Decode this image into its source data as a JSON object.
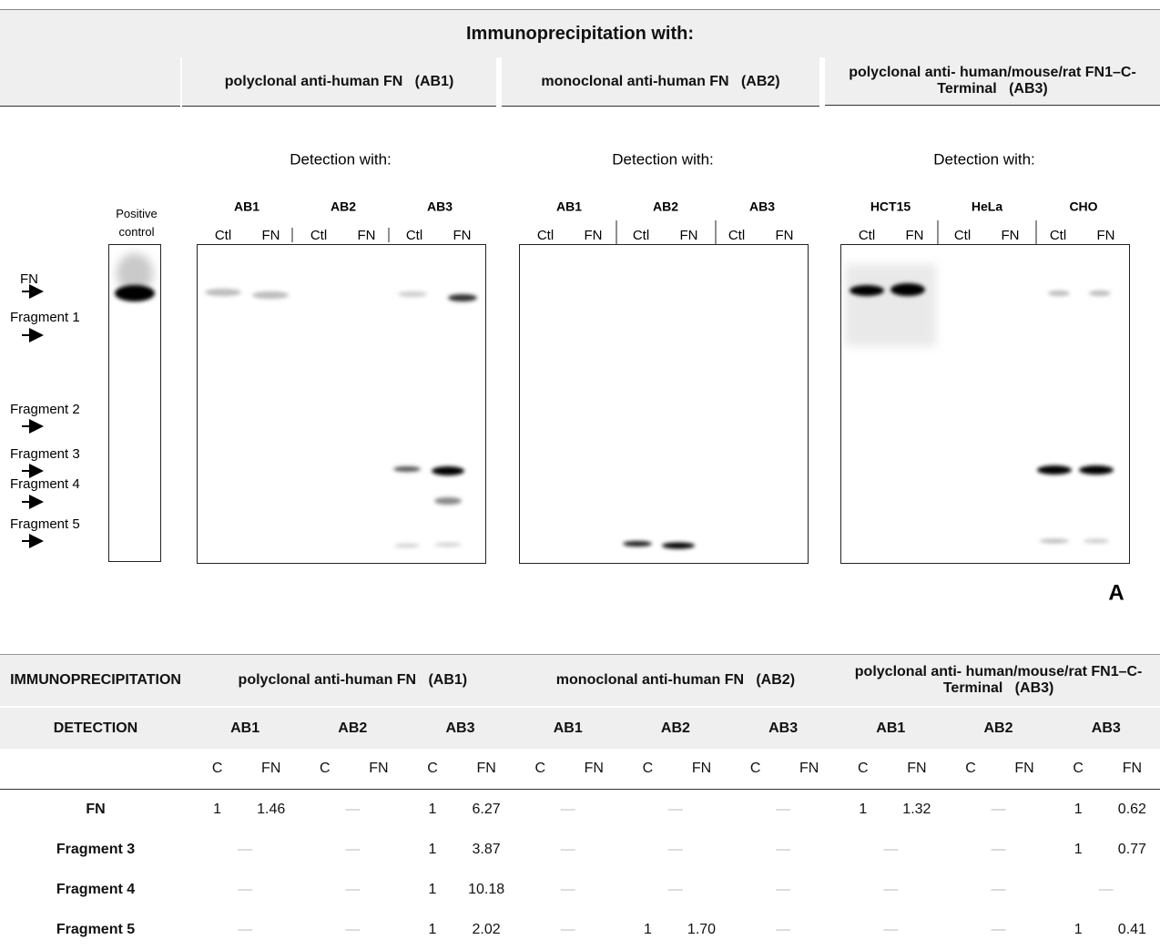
{
  "header": {
    "title": "Immunoprecipitation with:",
    "columns": [
      "polyclonal anti-human FN   (AB1)",
      "monoclonal anti-human FN   (AB2)",
      "polyclonal anti- human/mouse/rat FN1–C-Terminal   (AB3)"
    ]
  },
  "blots": {
    "positive_control": "Positive control",
    "markers": [
      "FN",
      "Fragment 1",
      "Fragment 2",
      "Fragment 3",
      "Fragment 4",
      "Fragment 5"
    ],
    "panels": [
      {
        "detection": "Detection with:",
        "groups": [
          "AB1",
          "AB2",
          "AB3"
        ],
        "lanes": [
          "Ctl",
          "FN",
          "Ctl",
          "FN",
          "Ctl",
          "FN"
        ]
      },
      {
        "detection": "Detection with:",
        "groups": [
          "AB1",
          "AB2",
          "AB3"
        ],
        "lanes": [
          "Ctl",
          "FN",
          "Ctl",
          "FN",
          "Ctl",
          "FN"
        ]
      },
      {
        "detection": "Detection with:",
        "groups": [
          "HCT15",
          "HeLa",
          "CHO"
        ],
        "lanes": [
          "Ctl",
          "FN",
          "Ctl",
          "FN",
          "Ctl",
          "FN"
        ]
      }
    ],
    "panel_label": "A"
  },
  "table": {
    "row_header": "IMMUNOPRECIPITATION",
    "groups": [
      "polyclonal anti-human FN   (AB1)",
      "monoclonal anti-human FN   (AB2)",
      "polyclonal anti- human/mouse/rat FN1–C-Terminal   (AB3)"
    ],
    "detection_header": "DETECTION",
    "detections": [
      "AB1",
      "AB2",
      "AB3",
      "AB1",
      "AB2",
      "AB3",
      "AB1",
      "AB2",
      "AB3"
    ],
    "lanes": [
      "C",
      "FN"
    ],
    "rows": [
      {
        "label": "FN",
        "cells": [
          [
            "1",
            "1.46"
          ],
          "—",
          [
            "1",
            "6.27"
          ],
          "—",
          "—",
          "—",
          [
            "1",
            "1.32"
          ],
          "—",
          [
            "1",
            "0.62"
          ]
        ]
      },
      {
        "label": "Fragment 3",
        "cells": [
          "—",
          "—",
          [
            "1",
            "3.87"
          ],
          "—",
          "—",
          "—",
          "—",
          "—",
          [
            "1",
            "0.77"
          ]
        ]
      },
      {
        "label": "Fragment 4",
        "cells": [
          "—",
          "—",
          [
            "1",
            "10.18"
          ],
          "—",
          "—",
          "—",
          "—",
          "—",
          "—"
        ]
      },
      {
        "label": "Fragment 5",
        "cells": [
          "—",
          "—",
          [
            "1",
            "2.02"
          ],
          "—",
          [
            "1",
            "1.70"
          ],
          "—",
          "—",
          "—",
          [
            "1",
            "0.41"
          ]
        ]
      }
    ]
  }
}
